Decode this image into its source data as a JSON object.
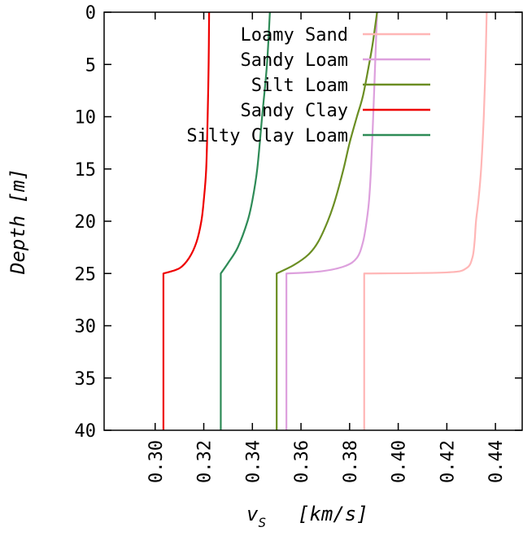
{
  "chart_data": {
    "type": "line",
    "xlabel": "v",
    "xlabel_sub": "S",
    "xlabel_units": "[km/s]",
    "ylabel": "Depth [m]",
    "xlim": [
      0.279,
      0.451
    ],
    "ylim": [
      0,
      40
    ],
    "y_reversed": true,
    "x_tick_values": [
      0.3,
      0.32,
      0.34,
      0.36,
      0.38,
      0.4,
      0.42,
      0.44
    ],
    "x_tick_labels": [
      "0.30",
      "0.32",
      "0.34",
      "0.36",
      "0.38",
      "0.40",
      "0.42",
      "0.44"
    ],
    "y_tick_values": [
      0,
      5,
      10,
      15,
      20,
      25,
      30,
      35,
      40
    ],
    "y_tick_labels": [
      "0",
      "5",
      "10",
      "15",
      "20",
      "25",
      "30",
      "35",
      "40"
    ],
    "legend_position": "top-right",
    "grid": false,
    "series": [
      {
        "name": "Loamy Sand",
        "color": "#ffb6b6",
        "upper": [
          [
            0.4364,
            0
          ],
          [
            0.4359,
            5
          ],
          [
            0.4352,
            10
          ],
          [
            0.4341,
            15
          ],
          [
            0.433,
            18
          ],
          [
            0.432,
            20
          ],
          [
            0.4314,
            22
          ],
          [
            0.4305,
            23.5
          ],
          [
            0.428,
            24.5
          ],
          [
            0.42,
            24.9
          ],
          [
            0.386,
            25
          ]
        ],
        "lower": [
          [
            0.386,
            25
          ],
          [
            0.386,
            40
          ]
        ]
      },
      {
        "name": "Sandy Loam",
        "color": "#dda0dd",
        "upper": [
          [
            0.3913,
            0
          ],
          [
            0.3905,
            5
          ],
          [
            0.3897,
            10
          ],
          [
            0.3888,
            15
          ],
          [
            0.388,
            18
          ],
          [
            0.387,
            20
          ],
          [
            0.3855,
            22
          ],
          [
            0.383,
            23.5
          ],
          [
            0.378,
            24.3
          ],
          [
            0.368,
            24.8
          ],
          [
            0.354,
            25
          ]
        ],
        "lower": [
          [
            0.354,
            25
          ],
          [
            0.354,
            40
          ]
        ]
      },
      {
        "name": "Silt Loam",
        "color": "#6b8e23",
        "upper": [
          [
            0.3913,
            0
          ],
          [
            0.3895,
            3
          ],
          [
            0.388,
            5
          ],
          [
            0.3855,
            8
          ],
          [
            0.383,
            10
          ],
          [
            0.38,
            12.5
          ],
          [
            0.3775,
            15
          ],
          [
            0.374,
            18
          ],
          [
            0.371,
            20
          ],
          [
            0.367,
            22
          ],
          [
            0.363,
            23.2
          ],
          [
            0.357,
            24.2
          ],
          [
            0.35,
            25
          ]
        ],
        "lower": [
          [
            0.35,
            25
          ],
          [
            0.35,
            40
          ]
        ]
      },
      {
        "name": "Sandy Clay",
        "color": "#ee0000",
        "upper": [
          [
            0.3222,
            0
          ],
          [
            0.322,
            5
          ],
          [
            0.3216,
            10
          ],
          [
            0.321,
            15
          ],
          [
            0.32,
            18
          ],
          [
            0.319,
            20
          ],
          [
            0.317,
            22
          ],
          [
            0.314,
            23.5
          ],
          [
            0.31,
            24.5
          ],
          [
            0.3034,
            25
          ]
        ],
        "lower": [
          [
            0.3034,
            25
          ],
          [
            0.3034,
            40
          ]
        ]
      },
      {
        "name": "Silty Clay Loam",
        "color": "#2e8b57",
        "upper": [
          [
            0.3472,
            0
          ],
          [
            0.346,
            5
          ],
          [
            0.344,
            10
          ],
          [
            0.342,
            15
          ],
          [
            0.34,
            18
          ],
          [
            0.338,
            20
          ],
          [
            0.334,
            22.5
          ],
          [
            0.33,
            24
          ],
          [
            0.327,
            25
          ]
        ],
        "lower": [
          [
            0.327,
            25
          ],
          [
            0.327,
            40
          ]
        ]
      }
    ]
  }
}
